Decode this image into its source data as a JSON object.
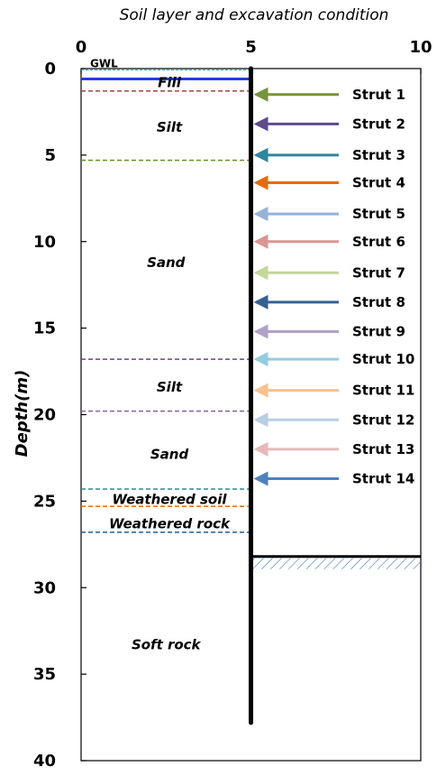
{
  "chart_data": {
    "type": "diagram",
    "title": "Soil layer and excavation condition",
    "ylabel": "Depth(m)",
    "xlim": [
      0,
      10
    ],
    "ylim": [
      0,
      40
    ],
    "x_ticks": [
      "0",
      "5",
      "10"
    ],
    "y_ticks": [
      "0",
      "5",
      "10",
      "15",
      "20",
      "25",
      "30",
      "35",
      "40"
    ],
    "x_axis_position": "top",
    "y_axis_inverted": true,
    "gwl": {
      "label": "GWL",
      "depth": 0,
      "color": "#4bacc6"
    },
    "wall": {
      "x": 5,
      "top": 0,
      "bottom": 37.8,
      "color": "#000000"
    },
    "excavation": {
      "depth": 28.2,
      "x_from": 5,
      "x_to": 10,
      "hatch_color": "#4f81bd"
    },
    "boundaries": [
      {
        "depth": 0.6,
        "color": "#1f3fe0",
        "style": "solid"
      },
      {
        "depth": 1.3,
        "color": "#a0433f",
        "style": "dashed"
      },
      {
        "depth": 5.3,
        "color": "#6c8c2a",
        "style": "dashed"
      },
      {
        "depth": 16.8,
        "color": "#5f4a8b",
        "style": "dashed"
      },
      {
        "depth": 19.8,
        "color": "#8064a2",
        "style": "dashed"
      },
      {
        "depth": 24.3,
        "color": "#31859c",
        "style": "dashed"
      },
      {
        "depth": 25.3,
        "color": "#e46c0a",
        "style": "dashed"
      },
      {
        "depth": 26.8,
        "color": "#215f9a",
        "style": "dashed"
      }
    ],
    "layers": [
      {
        "name": "Fill",
        "label_x": 2.6,
        "label_depth": 0.8
      },
      {
        "name": "Silt",
        "label_x": 2.6,
        "label_depth": 3.4
      },
      {
        "name": "Sand",
        "label_x": 2.5,
        "label_depth": 11.2
      },
      {
        "name": "Silt",
        "label_x": 2.6,
        "label_depth": 18.4
      },
      {
        "name": "Sand",
        "label_x": 2.6,
        "label_depth": 22.3
      },
      {
        "name": "Weathered soil",
        "label_x": 2.6,
        "label_depth": 24.9
      },
      {
        "name": "Weathered rock",
        "label_x": 2.6,
        "label_depth": 26.3
      },
      {
        "name": "Soft rock",
        "label_x": 2.5,
        "label_depth": 33.3
      }
    ],
    "struts": [
      {
        "name": "Strut 1",
        "depth": 1.5,
        "color": "#77933c"
      },
      {
        "name": "Strut 2",
        "depth": 3.2,
        "color": "#5f4a8b"
      },
      {
        "name": "Strut 3",
        "depth": 5.0,
        "color": "#31859c"
      },
      {
        "name": "Strut 4",
        "depth": 6.6,
        "color": "#e46c0a"
      },
      {
        "name": "Strut 5",
        "depth": 8.4,
        "color": "#95b3d7"
      },
      {
        "name": "Strut 6",
        "depth": 10.0,
        "color": "#d99694"
      },
      {
        "name": "Strut 7",
        "depth": 11.8,
        "color": "#c3d69b"
      },
      {
        "name": "Strut 8",
        "depth": 13.5,
        "color": "#376092"
      },
      {
        "name": "Strut 9",
        "depth": 15.2,
        "color": "#b2a1c7"
      },
      {
        "name": "Strut 10",
        "depth": 16.8,
        "color": "#93cddd"
      },
      {
        "name": "Strut 11",
        "depth": 18.6,
        "color": "#fac090"
      },
      {
        "name": "Strut 12",
        "depth": 20.3,
        "color": "#b9cde5"
      },
      {
        "name": "Strut 13",
        "depth": 22.0,
        "color": "#e6b9b8"
      },
      {
        "name": "Strut 14",
        "depth": 23.7,
        "color": "#4f81bd"
      }
    ]
  }
}
